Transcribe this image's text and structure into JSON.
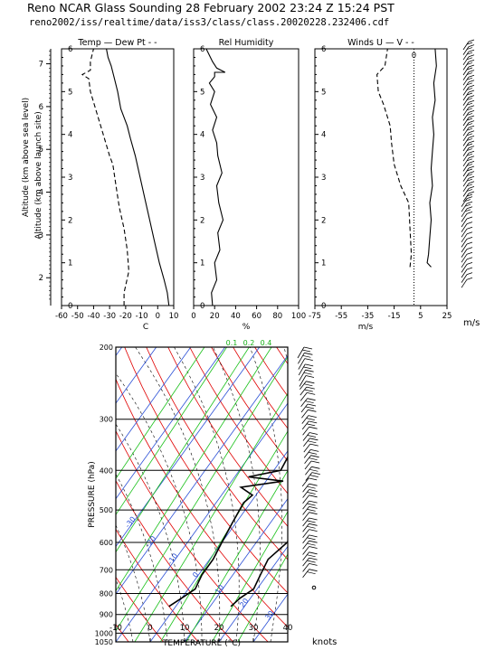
{
  "header": {
    "title": "Reno  NCAR Glass Sounding 28 February 2002 23:24 Z 15:24 PST",
    "file": "reno2002/iss/realtime/data/iss3/class/class.20020228.232406.cdf"
  },
  "units": {
    "wind_speed": "m/s",
    "barb_speed": "knots"
  },
  "chart_data": [
    {
      "type": "line",
      "title": "Temp — Dew Pt - -",
      "xlabel": "C",
      "ylabel": "Altitude (km above launch site)",
      "y2label": "Altitude (km above sea level)",
      "xlim": [
        -60,
        10
      ],
      "ylim": [
        0,
        6
      ],
      "y2lim": [
        1.35,
        7.35
      ],
      "xticks": [
        "-60",
        "-50",
        "-40",
        "-30",
        "-20",
        "-10",
        "0",
        "10"
      ],
      "yticks": [
        "0",
        "1",
        "2",
        "3",
        "4",
        "5",
        "6"
      ],
      "y2ticks": [
        "2",
        "3",
        "4",
        "5",
        "6",
        "7"
      ],
      "series": [
        {
          "name": "Temp",
          "style": "solid",
          "points": [
            [
              7,
              0
            ],
            [
              6,
              0.3
            ],
            [
              4,
              0.6
            ],
            [
              1,
              1.0
            ],
            [
              -2,
              1.5
            ],
            [
              -5,
              2.0
            ],
            [
              -8,
              2.5
            ],
            [
              -11,
              3.0
            ],
            [
              -14,
              3.5
            ],
            [
              -17,
              3.9
            ],
            [
              -19,
              4.2
            ],
            [
              -23,
              4.6
            ],
            [
              -25,
              5.0
            ],
            [
              -27,
              5.3
            ],
            [
              -29,
              5.6
            ],
            [
              -31,
              5.8
            ],
            [
              -32,
              6.0
            ]
          ]
        },
        {
          "name": "Dew Pt",
          "style": "dashed",
          "points": [
            [
              -21,
              0
            ],
            [
              -21,
              0.3
            ],
            [
              -18,
              0.8
            ],
            [
              -19,
              1.3
            ],
            [
              -21,
              1.8
            ],
            [
              -24,
              2.3
            ],
            [
              -26,
              2.8
            ],
            [
              -28,
              3.3
            ],
            [
              -30,
              3.5
            ],
            [
              -34,
              4.0
            ],
            [
              -38,
              4.5
            ],
            [
              -42,
              5.0
            ],
            [
              -43,
              5.3
            ],
            [
              -47,
              5.4
            ],
            [
              -42,
              5.5
            ],
            [
              -42,
              5.7
            ],
            [
              -40,
              6.0
            ]
          ]
        }
      ]
    },
    {
      "type": "line",
      "title": "Rel Humidity",
      "xlabel": "%",
      "xlim": [
        0,
        100
      ],
      "ylim": [
        0,
        6
      ],
      "xticks": [
        "0",
        "20",
        "40",
        "60",
        "80",
        "100"
      ],
      "yticks": [
        "0",
        "1",
        "2",
        "3",
        "4",
        "5",
        "6"
      ],
      "series": [
        {
          "name": "Rel Humidity",
          "style": "solid",
          "points": [
            [
              18,
              0
            ],
            [
              17,
              0.3
            ],
            [
              22,
              0.6
            ],
            [
              20,
              1.0
            ],
            [
              25,
              1.3
            ],
            [
              23,
              1.7
            ],
            [
              28,
              2.0
            ],
            [
              24,
              2.4
            ],
            [
              22,
              2.8
            ],
            [
              27,
              3.1
            ],
            [
              23,
              3.5
            ],
            [
              22,
              3.8
            ],
            [
              18,
              4.1
            ],
            [
              22,
              4.4
            ],
            [
              16,
              4.7
            ],
            [
              20,
              5.0
            ],
            [
              15,
              5.2
            ],
            [
              20,
              5.35
            ],
            [
              20,
              5.45
            ],
            [
              30,
              5.45
            ],
            [
              22,
              5.55
            ],
            [
              18,
              5.7
            ],
            [
              15,
              5.85
            ],
            [
              12,
              6.0
            ]
          ]
        }
      ]
    },
    {
      "type": "line",
      "title": "Winds U — V - -",
      "xlabel": "m/s",
      "xlim": [
        -75,
        25
      ],
      "ylim": [
        0,
        6
      ],
      "xticks": [
        "-75",
        "-55",
        "-35",
        "-15",
        "5",
        "25"
      ],
      "yticks": [
        "0",
        "1",
        "2",
        "3",
        "4",
        "5",
        "6"
      ],
      "zero_line_label": "0",
      "series": [
        {
          "name": "U",
          "style": "solid",
          "points": [
            [
              13,
              0.9
            ],
            [
              10,
              1.0
            ],
            [
              11,
              1.2
            ],
            [
              12,
              1.6
            ],
            [
              13,
              2.0
            ],
            [
              12,
              2.4
            ],
            [
              14,
              2.8
            ],
            [
              13,
              3.2
            ],
            [
              14,
              3.6
            ],
            [
              15,
              4.0
            ],
            [
              14,
              4.4
            ],
            [
              16,
              4.8
            ],
            [
              15,
              5.2
            ],
            [
              17,
              5.6
            ],
            [
              16,
              6.0
            ]
          ]
        },
        {
          "name": "V",
          "style": "dashed",
          "points": [
            [
              -3,
              0.9
            ],
            [
              -2,
              1.2
            ],
            [
              -3,
              1.8
            ],
            [
              -4,
              2.4
            ],
            [
              -10,
              2.8
            ],
            [
              -15,
              3.3
            ],
            [
              -17,
              3.8
            ],
            [
              -18,
              4.2
            ],
            [
              -23,
              4.7
            ],
            [
              -27,
              5.0
            ],
            [
              -28,
              5.4
            ],
            [
              -22,
              5.6
            ],
            [
              -20,
              6.0
            ]
          ]
        }
      ]
    },
    {
      "type": "line",
      "title": "Skew-T",
      "xlabel": "TEMPERATURE (°C)",
      "ylabel": "PRESSURE (hPa)",
      "xlim": [
        -10,
        40
      ],
      "ylim": [
        1050,
        200
      ],
      "xticks": [
        "-10",
        "0",
        "10",
        "20",
        "30",
        "40"
      ],
      "yticks": [
        "200",
        "300",
        "400",
        "500",
        "600",
        "700",
        "800",
        "900",
        "1000",
        "1050"
      ],
      "mixing_ratio_labels": [
        "0.1",
        "0.2",
        "0.4"
      ],
      "isotherm_labels": [
        "-80",
        "-70",
        "-60",
        "-50",
        "-40",
        "-30",
        "-20",
        "-10",
        "0",
        "10",
        "20",
        "30"
      ],
      "series": [
        {
          "name": "Temperature",
          "style": "solid",
          "points": [
            [
              16,
              860
            ],
            [
              17,
              820
            ],
            [
              19,
              780
            ],
            [
              18,
              720
            ],
            [
              17,
              660
            ],
            [
              19,
              600
            ],
            [
              18,
              540
            ],
            [
              19,
              480
            ],
            [
              20,
              430
            ],
            [
              19,
              380
            ],
            [
              18,
              330
            ],
            [
              16,
              290
            ],
            [
              17,
              250
            ],
            [
              17,
              220
            ],
            [
              20,
              200
            ]
          ]
        },
        {
          "name": "Dew Point",
          "style": "solid",
          "points": [
            [
              -2,
              860
            ],
            [
              0,
              820
            ],
            [
              2,
              780
            ],
            [
              1,
              720
            ],
            [
              1,
              660
            ],
            [
              0,
              600
            ],
            [
              -1,
              540
            ],
            [
              -2,
              480
            ],
            [
              -1,
              460
            ],
            [
              -6,
              440
            ],
            [
              5,
              425
            ],
            [
              -6,
              415
            ],
            [
              2,
              400
            ],
            [
              1,
              360
            ],
            [
              2,
              320
            ],
            [
              3,
              280
            ],
            [
              4,
              240
            ],
            [
              8,
              220
            ],
            [
              12,
              200
            ]
          ]
        }
      ]
    }
  ]
}
